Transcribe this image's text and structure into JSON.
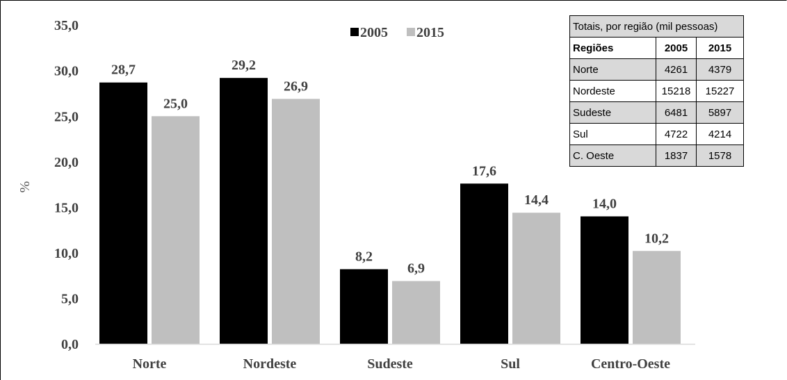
{
  "chart_data": {
    "type": "bar",
    "categories": [
      "Norte",
      "Nordeste",
      "Sudeste",
      "Sul",
      "Centro-Oeste"
    ],
    "series": [
      {
        "name": "2005",
        "values": [
          28.7,
          29.2,
          8.2,
          17.6,
          14.0
        ],
        "labels": [
          "28,7",
          "29,2",
          "8,2",
          "17,6",
          "14,0"
        ],
        "color": "#000000"
      },
      {
        "name": "2015",
        "values": [
          25.0,
          26.9,
          6.9,
          14.4,
          10.2
        ],
        "labels": [
          "25,0",
          "26,9",
          "6,9",
          "14,4",
          "10,2"
        ],
        "color": "#bfbfbf"
      }
    ],
    "ylabel": "%",
    "ylim": [
      0,
      35
    ],
    "yticks": [
      "0,0",
      "5,0",
      "10,0",
      "15,0",
      "20,0",
      "25,0",
      "30,0",
      "35,0"
    ],
    "grid": false,
    "legend_position": "top-center"
  },
  "table": {
    "title": "Totais, por região (mil pessoas)",
    "headers": [
      "Regiões",
      "2005",
      "2015"
    ],
    "rows": [
      [
        "Norte",
        "4261",
        "4379"
      ],
      [
        "Nordeste",
        "15218",
        "15227"
      ],
      [
        "Sudeste",
        "6481",
        "5897"
      ],
      [
        "Sul",
        "4722",
        "4214"
      ],
      [
        "C. Oeste",
        "1837",
        "1578"
      ]
    ]
  }
}
